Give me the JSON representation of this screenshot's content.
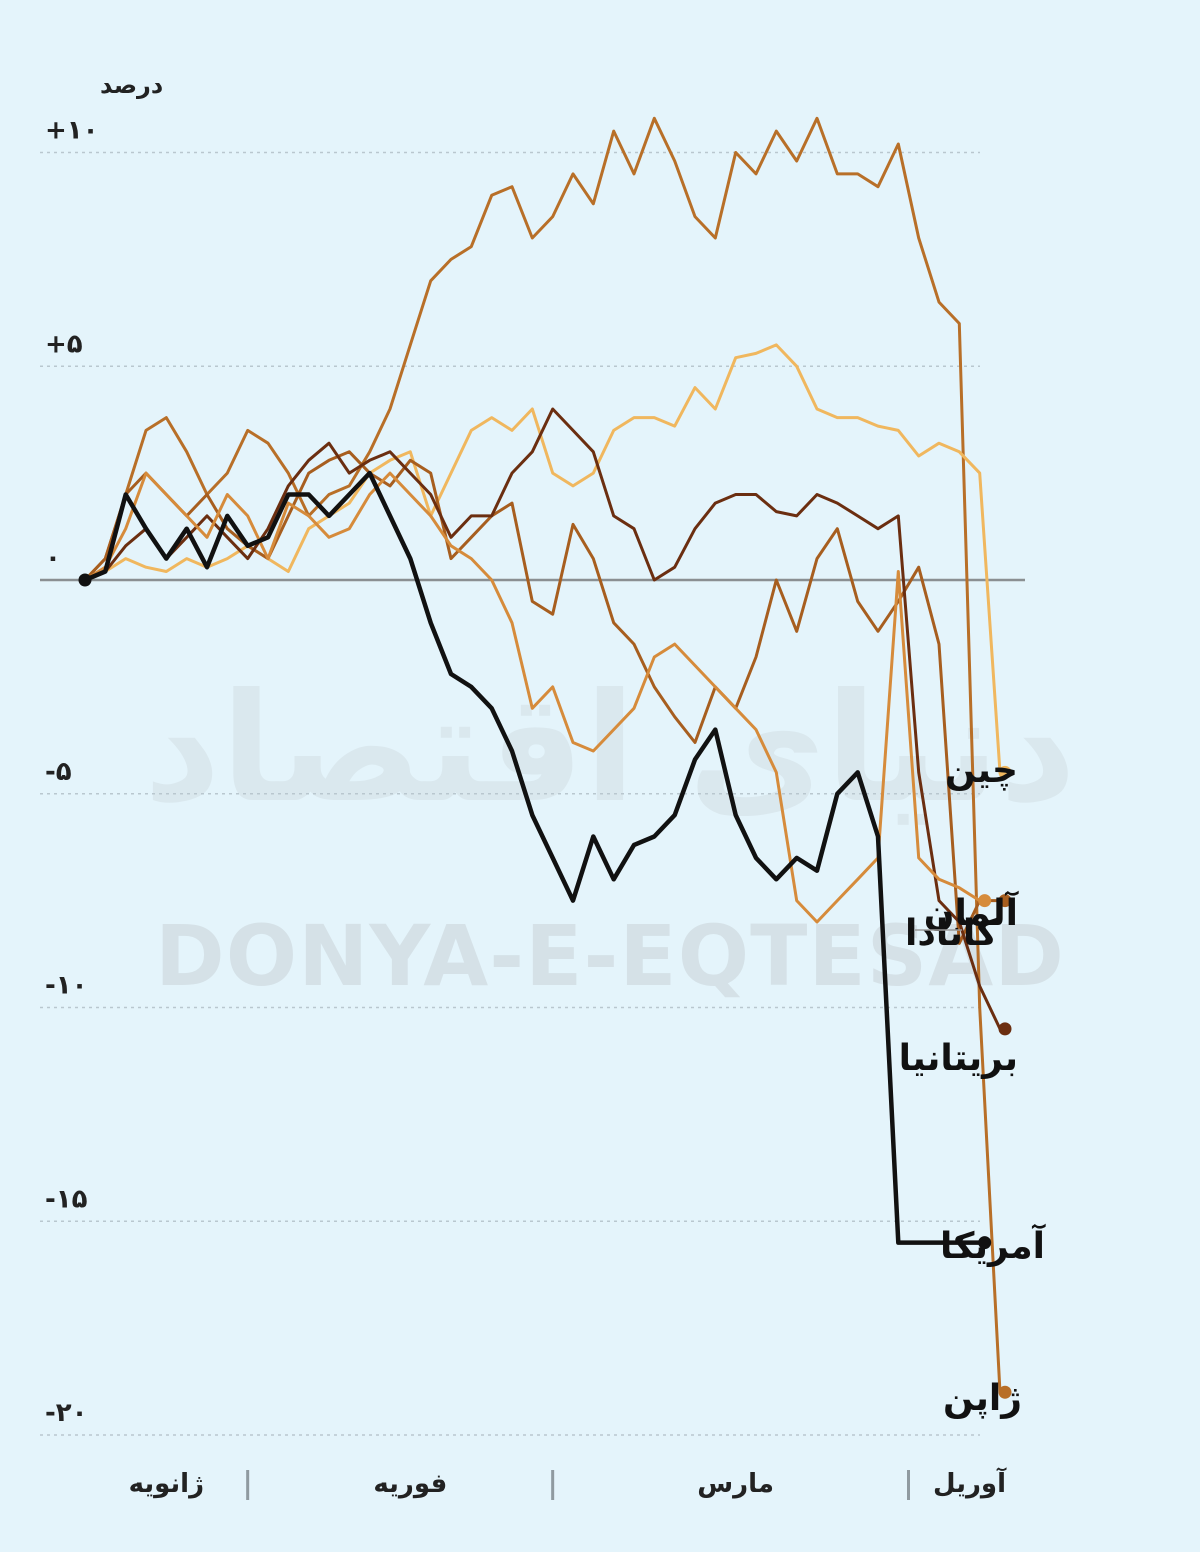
{
  "chart_data": {
    "type": "line",
    "unit_label": "درصد",
    "y_ticks": [
      "+۱۰",
      "+۵",
      "۰",
      "-۵",
      "-۱۰",
      "-۱۵",
      "-۲۰"
    ],
    "y_tick_values": [
      10,
      5,
      0,
      -5,
      -10,
      -15,
      -20
    ],
    "ylim": [
      -20.5,
      11
    ],
    "x_range": [
      0,
      45
    ],
    "x_ticks": [
      {
        "label": "ژانویه",
        "x": 4
      },
      {
        "label": "فوریه",
        "x": 16
      },
      {
        "label": "مارس",
        "x": 32
      },
      {
        "label": "آوریل",
        "x": 43.5
      }
    ],
    "x_separators": [
      8,
      23,
      40.5
    ],
    "grid": true,
    "watermark": {
      "latin": "DONYA-E-EQTESAD",
      "farsi": "دنیای اقتصاد"
    },
    "series": [
      {
        "name": "ژاپن",
        "color": "#b86f28",
        "width": 3,
        "label_color": "#111",
        "end_label_dy": 0,
        "x": [
          0,
          1,
          2,
          3,
          4,
          5,
          6,
          7,
          8,
          9,
          10,
          11,
          12,
          13,
          14,
          15,
          16,
          17,
          18,
          19,
          20,
          21,
          22,
          23,
          24,
          25,
          26,
          27,
          28,
          29,
          30,
          31,
          32,
          33,
          34,
          35,
          36,
          37,
          38,
          39,
          40,
          41,
          42,
          43,
          44,
          45
        ],
        "y": [
          0,
          0.5,
          2,
          3.5,
          3.8,
          3,
          2,
          2.5,
          3.5,
          3.2,
          2.5,
          1.5,
          2,
          2.2,
          3,
          4,
          5.5,
          7,
          7.5,
          7.8,
          9,
          9.2,
          8,
          8.5,
          9.5,
          8.8,
          10.5,
          9.5,
          10.8,
          9.8,
          8.5,
          8,
          10,
          9.5,
          10.5,
          9.8,
          10.8,
          9.5,
          9.5,
          9.2,
          10.2,
          8,
          6.5,
          6,
          -10,
          -19
        ]
      },
      {
        "name": "چین",
        "color": "#f0b75e",
        "width": 3,
        "label_color": "#111",
        "end_label_dy": 0,
        "x": [
          0,
          1,
          2,
          3,
          4,
          5,
          6,
          7,
          8,
          9,
          10,
          11,
          12,
          13,
          14,
          15,
          16,
          17,
          18,
          19,
          20,
          21,
          22,
          23,
          24,
          25,
          26,
          27,
          28,
          29,
          30,
          31,
          32,
          33,
          34,
          35,
          36,
          37,
          38,
          39,
          40,
          41,
          42,
          43,
          44,
          45
        ],
        "y": [
          0,
          0.2,
          0.5,
          0.3,
          0.2,
          0.5,
          0.3,
          0.5,
          0.8,
          0.5,
          0.2,
          1.2,
          1.5,
          1.8,
          2.5,
          2.8,
          3.0,
          1.5,
          2.5,
          3.5,
          3.8,
          3.5,
          4.0,
          2.5,
          2.2,
          2.5,
          3.5,
          3.8,
          3.8,
          3.6,
          4.5,
          4.0,
          5.2,
          5.3,
          5.5,
          5.0,
          4.0,
          3.8,
          3.8,
          3.6,
          3.5,
          2.9,
          3.2,
          3.0,
          2.5,
          -4.5
        ]
      },
      {
        "name": "آلمان",
        "color": "#a75e1f",
        "width": 3,
        "label_color": "#111",
        "end_label_dy": 0,
        "x": [
          0,
          1,
          2,
          3,
          4,
          5,
          6,
          7,
          8,
          9,
          10,
          11,
          12,
          13,
          14,
          15,
          16,
          17,
          18,
          19,
          20,
          21,
          22,
          23,
          24,
          25,
          26,
          27,
          28,
          29,
          30,
          31,
          32,
          33,
          34,
          35,
          36,
          37,
          38,
          39,
          40,
          41,
          42,
          43,
          44,
          45
        ],
        "y": [
          0,
          0.5,
          2,
          2.5,
          2,
          1.5,
          2,
          1.2,
          0.8,
          0.5,
          1.5,
          2.5,
          2.8,
          3.0,
          2.5,
          2.2,
          2.8,
          2.5,
          0.5,
          1.0,
          1.5,
          1.8,
          -0.5,
          -0.8,
          1.3,
          0.5,
          -1.0,
          -1.5,
          -2.5,
          -3.2,
          -3.8,
          -2.5,
          -3.0,
          -1.8,
          0.0,
          -1.2,
          0.5,
          1.2,
          -0.5,
          -1.2,
          -0.5,
          0.3,
          -1.5,
          -8.5,
          -7.5,
          -7.5
        ]
      },
      {
        "name": "بریتانیا",
        "color": "#6b2e10",
        "width": 3,
        "label_color": "#111",
        "end_label_dy": 0,
        "x": [
          0,
          1,
          2,
          3,
          4,
          5,
          6,
          7,
          8,
          9,
          10,
          11,
          12,
          13,
          14,
          15,
          16,
          17,
          18,
          19,
          20,
          21,
          22,
          23,
          24,
          25,
          26,
          27,
          28,
          29,
          30,
          31,
          32,
          33,
          34,
          35,
          36,
          37,
          38,
          39,
          40,
          41,
          42,
          43,
          44,
          45
        ],
        "y": [
          0,
          0.2,
          0.8,
          1.2,
          0.5,
          1.0,
          1.5,
          1.0,
          0.5,
          1.2,
          2.2,
          2.8,
          3.2,
          2.5,
          2.8,
          3.0,
          2.5,
          2.0,
          1.0,
          1.5,
          1.5,
          2.5,
          3.0,
          4.0,
          3.5,
          3.0,
          1.5,
          1.2,
          0,
          0.3,
          1.2,
          1.8,
          2.0,
          2.0,
          1.6,
          1.5,
          2.0,
          1.8,
          1.5,
          1.2,
          1.5,
          -4.5,
          -7.5,
          -8,
          -9.5,
          -10.5
        ]
      },
      {
        "name": "کانادا",
        "color": "#d68b3b",
        "width": 3,
        "label_color": "#111",
        "end_label_dy": 0,
        "x": [
          0,
          1,
          2,
          3,
          4,
          5,
          6,
          7,
          8,
          9,
          10,
          11,
          12,
          13,
          14,
          15,
          16,
          17,
          18,
          19,
          20,
          21,
          22,
          23,
          24,
          25,
          26,
          27,
          28,
          29,
          30,
          31,
          32,
          33,
          34,
          35,
          36,
          37,
          38,
          39,
          40,
          41,
          42,
          43,
          44
        ],
        "y": [
          0,
          0.3,
          1.2,
          2.5,
          2.0,
          1.5,
          1.0,
          2.0,
          1.5,
          0.5,
          1.8,
          1.5,
          1.0,
          1.2,
          2.0,
          2.5,
          2.0,
          1.5,
          0.8,
          0.5,
          0,
          -1.0,
          -3.0,
          -2.5,
          -3.8,
          -4.0,
          -3.5,
          -3.0,
          -1.8,
          -1.5,
          -2.0,
          -2.5,
          -3.0,
          -3.5,
          -4.5,
          -7.5,
          -8.0,
          -7.5,
          -7.0,
          -6.5,
          0.2,
          -6.5,
          -7.0,
          -7.2,
          -7.5
        ]
      },
      {
        "name": "آمریکا",
        "color": "#111111",
        "width": 4.5,
        "label_color": "#111",
        "end_label_dy": 0,
        "x": [
          0,
          1,
          2,
          3,
          4,
          5,
          6,
          7,
          8,
          9,
          10,
          11,
          12,
          13,
          14,
          15,
          16,
          17,
          18,
          19,
          20,
          21,
          22,
          23,
          24,
          25,
          26,
          27,
          28,
          29,
          30,
          31,
          32,
          33,
          34,
          35,
          36,
          37,
          38,
          39,
          40,
          41,
          42,
          43,
          44
        ],
        "y": [
          0,
          0.2,
          2.0,
          1.2,
          0.5,
          1.2,
          0.3,
          1.5,
          0.8,
          1.0,
          2.0,
          2.0,
          1.5,
          2.0,
          2.5,
          1.5,
          0.5,
          -1.0,
          -2.2,
          -2.5,
          -3.0,
          -4.0,
          -5.5,
          -6.5,
          -7.5,
          -6.0,
          -7.0,
          -6.2,
          -6.0,
          -5.5,
          -4.2,
          -3.5,
          -5.5,
          -6.5,
          -7.0,
          -6.5,
          -6.8,
          -5.0,
          -4.5,
          -6.0,
          -15.5,
          -15.5,
          -15.5,
          -15.5,
          -15.5
        ]
      }
    ]
  }
}
